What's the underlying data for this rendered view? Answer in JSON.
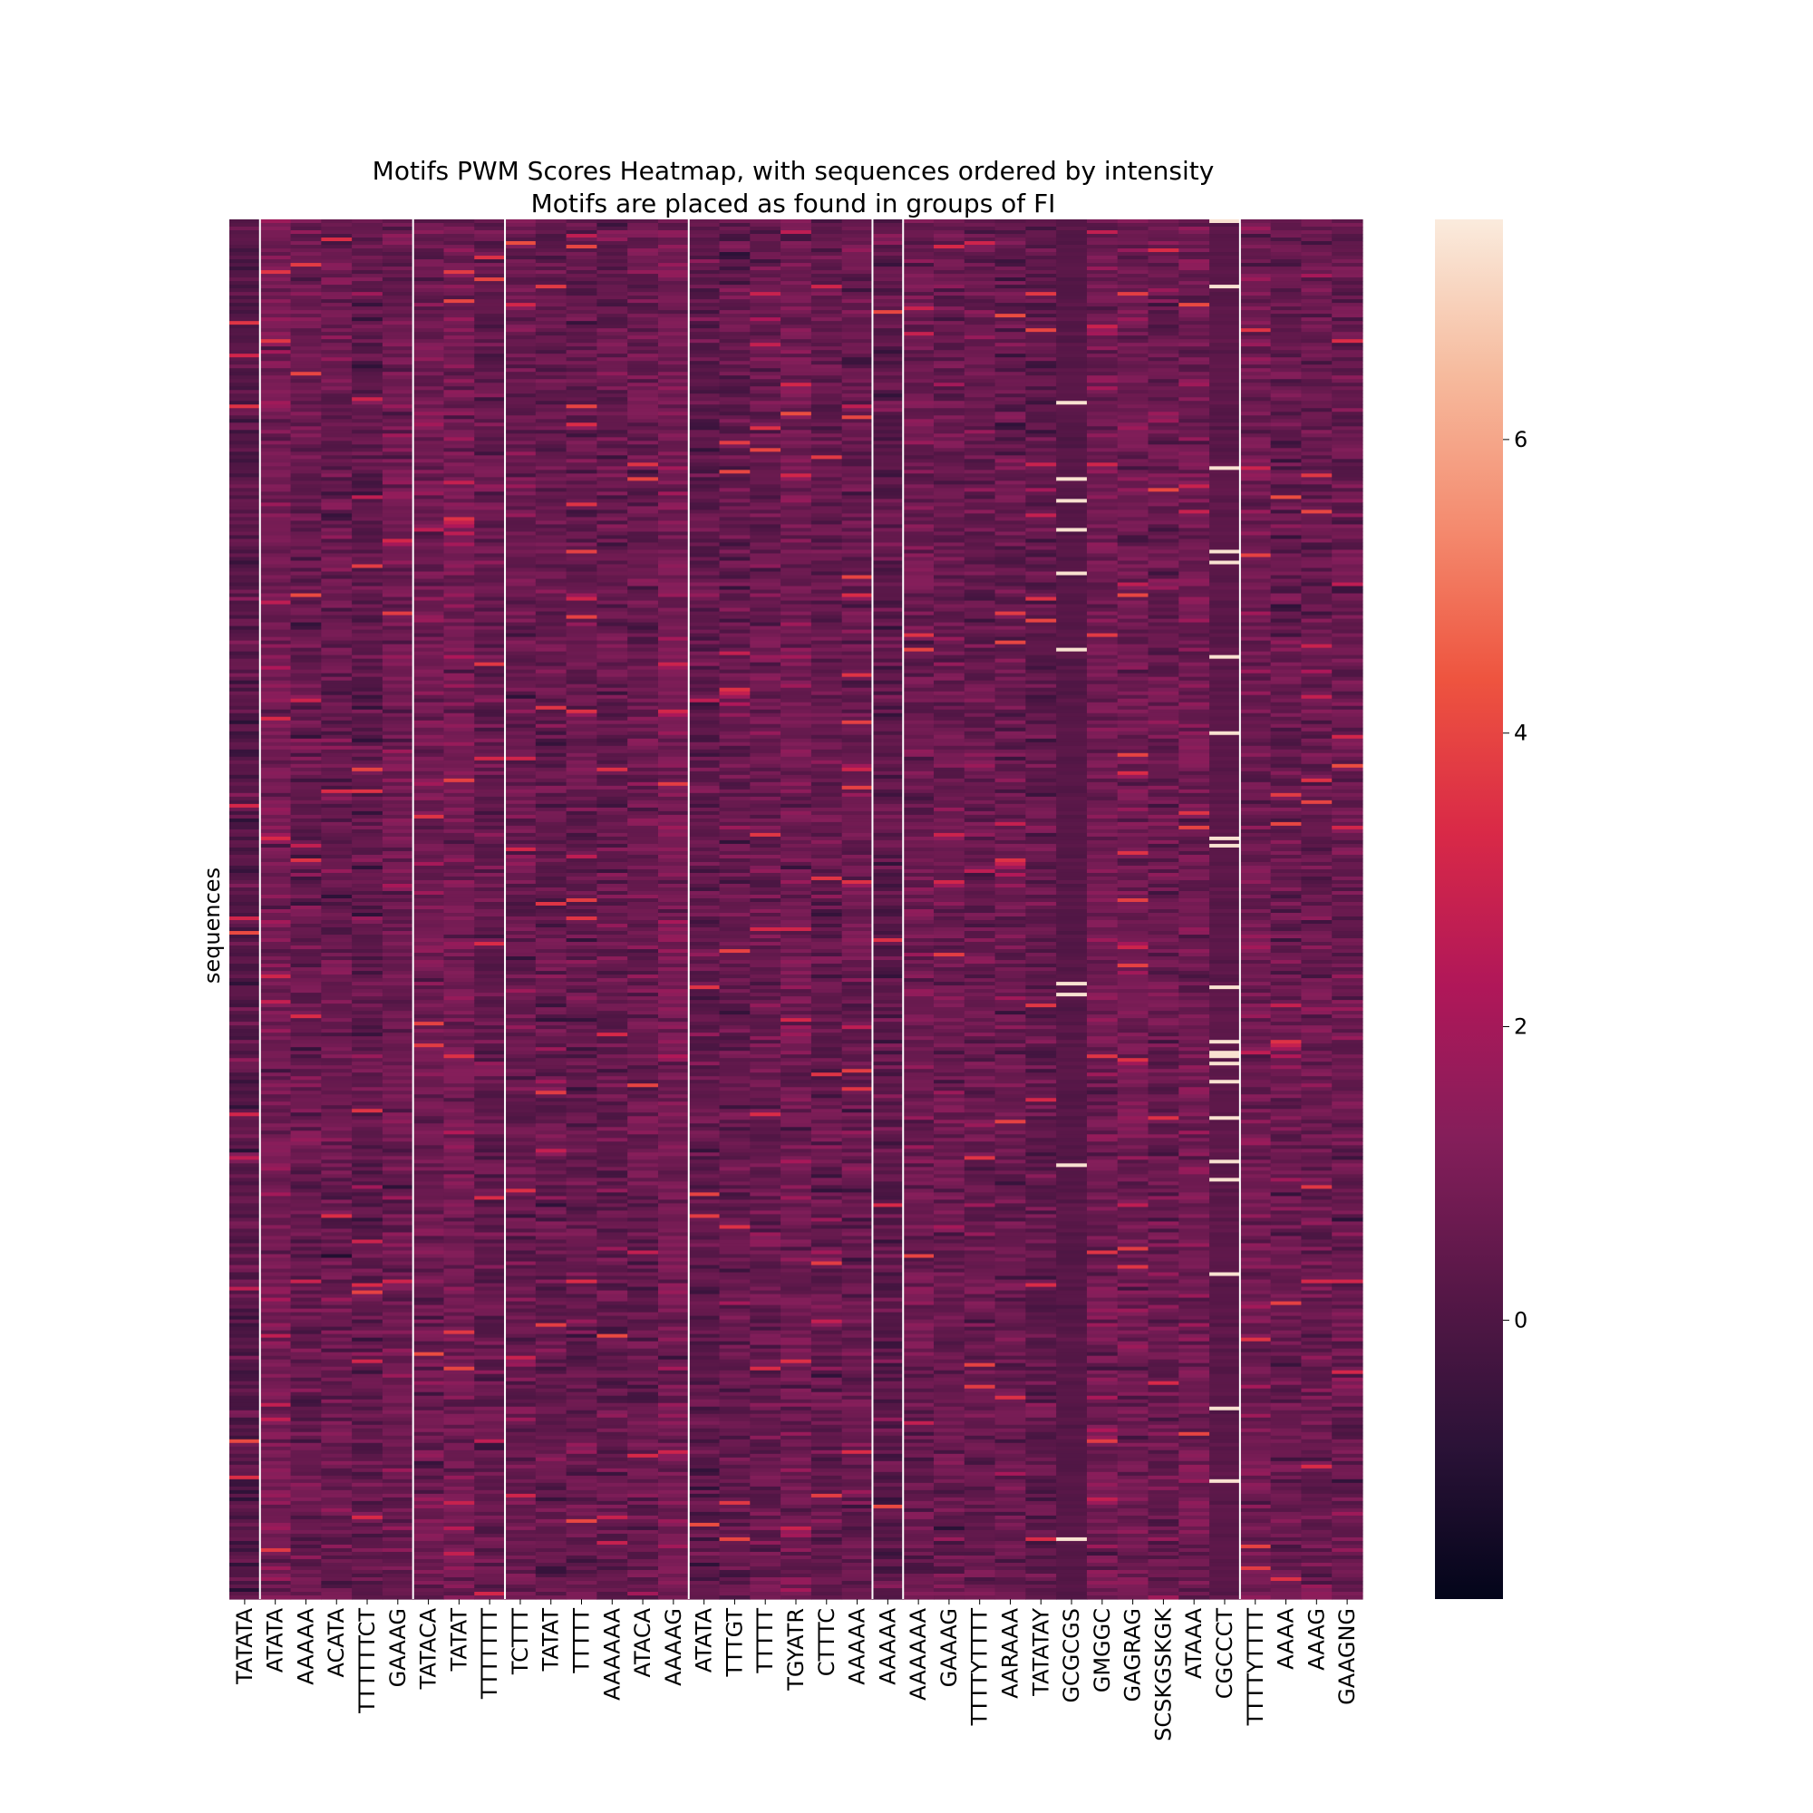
{
  "chart_data": {
    "type": "heatmap",
    "title": "Motifs PWM Scores Heatmap, with sequences ordered by intensity",
    "subtitle": "Motifs are placed as found in groups of FI",
    "xlabel": "",
    "ylabel": "sequences",
    "columns": [
      "TATATA",
      "ATATA",
      "AAAAA",
      "ACATA",
      "TTTTTTCT",
      "GAAAG",
      "TATACA",
      "TATAT",
      "TTTTTTT",
      "TCTTT",
      "TATAT",
      "TTTTT",
      "AAAAAA",
      "ATACA",
      "AAAAG",
      "ATATA",
      "TTTGT",
      "TTTTT",
      "TGYATR",
      "CTTTC",
      "AAAAA",
      "AAAAA",
      "AAAAAA",
      "GAAAG",
      "TTTTYTTTT",
      "AARAAA",
      "TATATAY",
      "GCGCGS",
      "GMGGC",
      "GAGRAG",
      "SCSKGSKGK",
      "ATAAA",
      "CGCCCT",
      "TTTTYTTTT",
      "AAAA",
      "AAAG",
      "GAAGNG"
    ],
    "group_boundaries_after_column_index": [
      0,
      5,
      8,
      14,
      20,
      21,
      32
    ],
    "column_typical_values": [
      0.2,
      0.9,
      0.6,
      0.6,
      0.4,
      0.7,
      0.8,
      0.9,
      0.5,
      0.6,
      0.5,
      0.5,
      0.5,
      0.6,
      0.9,
      0.4,
      0.5,
      0.6,
      0.8,
      0.5,
      0.6,
      0.3,
      0.7,
      0.6,
      0.6,
      0.6,
      0.4,
      0.2,
      0.8,
      0.8,
      0.6,
      0.8,
      0.3,
      0.8,
      0.6,
      0.6,
      0.6
    ],
    "colorbar": {
      "ticks": [
        0,
        2,
        4,
        6
      ],
      "range": [
        -1.9,
        7.5
      ],
      "colormap": "rocket",
      "colors": [
        "#03051a",
        "#2b1237",
        "#561747",
        "#841e5a",
        "#b01759",
        "#d92947",
        "#ee543f",
        "#f48b6f",
        "#f6bb9e",
        "#faebdd"
      ]
    },
    "grid": false,
    "legend": "colorbar-right",
    "outlier_color": "#faebdd"
  }
}
